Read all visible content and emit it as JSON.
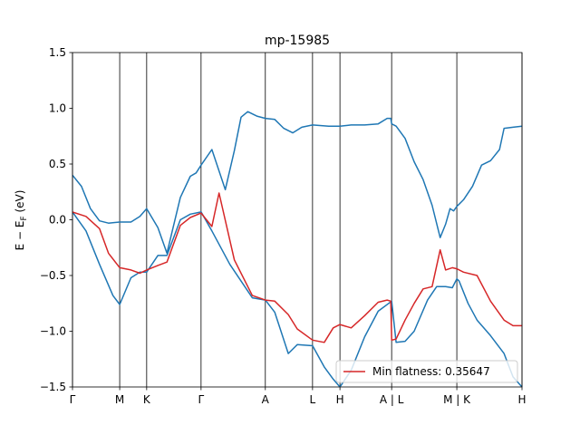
{
  "chart_data": {
    "type": "line",
    "title": "mp-15985",
    "xlabel": "",
    "ylabel": "E − E_F (eV)",
    "ylim": [
      -1.5,
      1.5
    ],
    "xlim": [
      0,
      1
    ],
    "grid": false,
    "legend_position": "bottom-right",
    "y_ticks": [
      {
        "value": 1.5,
        "label": "1.5"
      },
      {
        "value": 1.0,
        "label": "1.0"
      },
      {
        "value": 0.5,
        "label": "0.5"
      },
      {
        "value": 0.0,
        "label": "0.0"
      },
      {
        "value": -0.5,
        "label": "−0.5"
      },
      {
        "value": -1.0,
        "label": "−1.0"
      },
      {
        "value": -1.5,
        "label": "−1.5"
      }
    ],
    "x_ticks": [
      {
        "value": 0.0,
        "label": "Γ"
      },
      {
        "value": 0.105,
        "label": "M"
      },
      {
        "value": 0.165,
        "label": "K"
      },
      {
        "value": 0.286,
        "label": "Γ"
      },
      {
        "value": 0.429,
        "label": "A"
      },
      {
        "value": 0.534,
        "label": "L"
      },
      {
        "value": 0.595,
        "label": "H"
      },
      {
        "value": 0.71,
        "label": "A | L"
      },
      {
        "value": 0.855,
        "label": "M | K"
      },
      {
        "value": 1.0,
        "label": "H"
      }
    ],
    "series": [
      {
        "color": "#1f77b4",
        "x": [
          0,
          0.02,
          0.04,
          0.06,
          0.08,
          0.105,
          0.13,
          0.15,
          0.165,
          0.19,
          0.21,
          0.24,
          0.262,
          0.275,
          0.286,
          0.31,
          0.34,
          0.36,
          0.375,
          0.39,
          0.41,
          0.429,
          0.45,
          0.47,
          0.49,
          0.51,
          0.534,
          0.57,
          0.595,
          0.62,
          0.65,
          0.68,
          0.7,
          0.708,
          0.71,
          0.72,
          0.74,
          0.76,
          0.78,
          0.8,
          0.818,
          0.83,
          0.84,
          0.848,
          0.855,
          0.855,
          0.86,
          0.87,
          0.89,
          0.91,
          0.93,
          0.95,
          0.96,
          0.98,
          1.0
        ],
        "y": [
          0.4,
          0.3,
          0.1,
          -0.01,
          -0.03,
          -0.02,
          -0.02,
          0.03,
          0.1,
          -0.07,
          -0.3,
          0.2,
          0.39,
          0.42,
          0.49,
          0.63,
          0.27,
          0.62,
          0.92,
          0.97,
          0.93,
          0.91,
          0.9,
          0.82,
          0.78,
          0.83,
          0.85,
          0.84,
          0.84,
          0.85,
          0.85,
          0.86,
          0.91,
          0.91,
          0.86,
          0.84,
          0.73,
          0.52,
          0.36,
          0.13,
          -0.16,
          -0.04,
          0.1,
          0.08,
          0.12,
          0.12,
          0.14,
          0.18,
          0.3,
          0.49,
          0.53,
          0.63,
          0.82,
          0.83,
          0.84
        ]
      },
      {
        "color": "#1f77b4",
        "x": [
          0,
          0.03,
          0.06,
          0.09,
          0.105,
          0.13,
          0.15,
          0.165,
          0.19,
          0.21,
          0.24,
          0.262,
          0.286,
          0.31,
          0.35,
          0.4,
          0.429,
          0.45,
          0.48,
          0.5,
          0.534,
          0.56,
          0.58,
          0.595,
          0.62,
          0.65,
          0.68,
          0.71,
          0.72,
          0.74,
          0.76,
          0.79,
          0.81,
          0.83,
          0.845,
          0.855,
          0.86,
          0.88,
          0.9,
          0.93,
          0.96,
          0.98,
          1.0
        ],
        "y": [
          0.07,
          -0.1,
          -0.4,
          -0.68,
          -0.76,
          -0.52,
          -0.47,
          -0.47,
          -0.32,
          -0.32,
          0.0,
          0.05,
          0.07,
          -0.1,
          -0.4,
          -0.7,
          -0.72,
          -0.83,
          -1.2,
          -1.12,
          -1.13,
          -1.32,
          -1.43,
          -1.5,
          -1.35,
          -1.05,
          -0.82,
          -0.73,
          -1.1,
          -1.09,
          -1.0,
          -0.72,
          -0.6,
          -0.6,
          -0.61,
          -0.53,
          -0.55,
          -0.75,
          -0.9,
          -1.04,
          -1.2,
          -1.41,
          -1.5
        ]
      },
      {
        "name": "Min flatness: 0.35647",
        "color": "#d62728",
        "x": [
          0,
          0.03,
          0.06,
          0.08,
          0.105,
          0.13,
          0.15,
          0.165,
          0.19,
          0.21,
          0.24,
          0.262,
          0.286,
          0.31,
          0.326,
          0.36,
          0.4,
          0.429,
          0.45,
          0.48,
          0.5,
          0.534,
          0.56,
          0.58,
          0.595,
          0.62,
          0.65,
          0.68,
          0.7,
          0.708,
          0.71,
          0.72,
          0.74,
          0.76,
          0.78,
          0.8,
          0.818,
          0.83,
          0.845,
          0.855,
          0.87,
          0.9,
          0.93,
          0.96,
          0.98,
          1.0
        ],
        "y": [
          0.07,
          0.03,
          -0.08,
          -0.3,
          -0.43,
          -0.45,
          -0.48,
          -0.45,
          -0.41,
          -0.38,
          -0.05,
          0.02,
          0.06,
          -0.06,
          0.24,
          -0.36,
          -0.68,
          -0.72,
          -0.73,
          -0.85,
          -0.98,
          -1.08,
          -1.1,
          -0.97,
          -0.94,
          -0.97,
          -0.86,
          -0.74,
          -0.72,
          -0.73,
          -1.08,
          -1.07,
          -0.9,
          -0.75,
          -0.62,
          -0.6,
          -0.27,
          -0.45,
          -0.43,
          -0.44,
          -0.47,
          -0.5,
          -0.73,
          -0.9,
          -0.95,
          -0.95
        ]
      }
    ]
  }
}
